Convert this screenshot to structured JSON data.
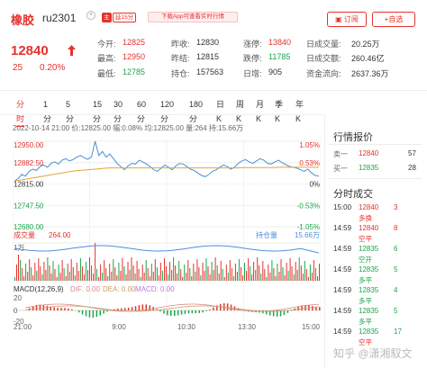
{
  "header": {
    "name": "橡胶",
    "code": "ru2301",
    "tag_main": "主",
    "tag_delay": "延15分",
    "app_banner": "下载App可查看实时行情",
    "order_button": "订阅",
    "fav_button": "+自选"
  },
  "quote": {
    "price": "12840",
    "change": "25",
    "change_pct": "0.20%",
    "fields": [
      {
        "label": "今开:",
        "value": "12825",
        "color": "#e5322d"
      },
      {
        "label": "昨收:",
        "value": "12830",
        "color": "#333333"
      },
      {
        "label": "涨停:",
        "value": "13840",
        "color": "#e5322d"
      },
      {
        "label": "日成交量:",
        "value": "20.25万",
        "color": "#333333"
      },
      {
        "label": "最高:",
        "value": "12950",
        "color": "#e5322d"
      },
      {
        "label": "昨结:",
        "value": "12815",
        "color": "#333333"
      },
      {
        "label": "跌停:",
        "value": "11785",
        "color": "#1aa64a"
      },
      {
        "label": "日成交额:",
        "value": "260.46亿",
        "color": "#333333"
      },
      {
        "label": "最低:",
        "value": "12785",
        "color": "#1aa64a"
      },
      {
        "label": "持仓:",
        "value": "157563",
        "color": "#333333"
      },
      {
        "label": "日增:",
        "value": "905",
        "color": "#333333"
      },
      {
        "label": "资金流向:",
        "value": "2637.36万",
        "color": "#333333"
      }
    ]
  },
  "tabs": [
    "分时",
    "1分",
    "5分",
    "15分",
    "30分",
    "60分",
    "120分",
    "180分",
    "日K",
    "周K",
    "月K",
    "季K",
    "年K"
  ],
  "infobar": "2022-10-14 21:00 价:12825.00 幅:0.08% 均:12825.00 量:264 持:15.66万",
  "chart_data": {
    "type": "line",
    "price_axis_left": [
      "12950.00",
      "12882.50",
      "12815.00",
      "12747.50",
      "12680.00"
    ],
    "price_axis_right": [
      "1.05%",
      "0.53%",
      "0%",
      "-0.53%",
      "-1.05%"
    ],
    "ylim": [
      12680,
      12950
    ],
    "volume_label": "成交量",
    "volume_value": "264.00",
    "open_interest_label": "持仓量",
    "open_interest_value": "15.66万",
    "volume_axis_top": "1万",
    "macd_label": "MACD(12,26,9)",
    "dif_label": "DIF: 0.00",
    "dea_label": "DEA: 0.00",
    "macd_value_label": "MACD: 0.00",
    "macd_axis": [
      "20",
      "0",
      "-20"
    ],
    "time_labels": [
      "21:00",
      "9:00",
      "10:30",
      "13:30",
      "15:00"
    ],
    "price": [
      12825,
      12832,
      12845,
      12840,
      12855,
      12862,
      12858,
      12870,
      12875,
      12868,
      12880,
      12885,
      12878,
      12890,
      12895,
      12888,
      12892,
      12900,
      12905,
      12898,
      12893,
      12900,
      12950,
      12905,
      12918,
      12900,
      12910,
      12895,
      12880,
      12870,
      12860,
      12872,
      12880,
      12878,
      12890,
      12885,
      12878,
      12870,
      12860,
      12855,
      12865,
      12875,
      12868,
      12860,
      12872,
      12880,
      12878,
      12870,
      12862,
      12858,
      12850,
      12842,
      12838,
      12845,
      12855,
      12860,
      12868,
      12875,
      12870,
      12862,
      12868,
      12880,
      12888,
      12892,
      12885,
      12880,
      12888,
      12895,
      12890,
      12880,
      12878,
      12885,
      12890,
      12882,
      12876,
      12870,
      12868,
      12865,
      12860,
      12855,
      12862,
      12850,
      12842,
      12840
    ],
    "avg": [
      12825,
      12826,
      12828,
      12830,
      12832,
      12834,
      12836,
      12838,
      12840,
      12842,
      12844,
      12846,
      12848,
      12850,
      12852,
      12854,
      12856,
      12857,
      12858,
      12859,
      12860,
      12861,
      12862,
      12863,
      12864,
      12865,
      12866,
      12866,
      12866,
      12866,
      12866,
      12866,
      12866,
      12866,
      12866,
      12866,
      12866,
      12866,
      12866,
      12866,
      12866,
      12866,
      12866,
      12866,
      12866,
      12866,
      12866,
      12866,
      12866,
      12866,
      12866,
      12866,
      12866,
      12866,
      12866,
      12866,
      12866,
      12866,
      12866,
      12866,
      12866,
      12866,
      12867,
      12867,
      12867,
      12867,
      12867,
      12867,
      12867,
      12867,
      12867,
      12867,
      12868,
      12868,
      12868,
      12868,
      12868,
      12868,
      12868,
      12868,
      12868,
      12868,
      12868,
      12868
    ]
  },
  "sidebar": {
    "quote_title": "行情报价",
    "sell_label": "卖一",
    "sell_price": "12840",
    "sell_qty": "57",
    "buy_label": "买一",
    "buy_price": "12835",
    "buy_qty": "28",
    "ticks_title": "分时成交",
    "ticks": [
      {
        "time": "15:00",
        "price": "12840",
        "qty": "3",
        "type": "多换",
        "pcolor": "#e5322d",
        "tcolor": "#e5322d"
      },
      {
        "time": "14:59",
        "price": "12840",
        "qty": "8",
        "type": "空平",
        "pcolor": "#e5322d",
        "tcolor": "#e5322d"
      },
      {
        "time": "14:59",
        "price": "12835",
        "qty": "6",
        "type": "空开",
        "pcolor": "#1aa64a",
        "tcolor": "#1aa64a"
      },
      {
        "time": "14:59",
        "price": "12835",
        "qty": "5",
        "type": "多平",
        "pcolor": "#1aa64a",
        "tcolor": "#1aa64a"
      },
      {
        "time": "14:59",
        "price": "12835",
        "qty": "4",
        "type": "多平",
        "pcolor": "#1aa64a",
        "tcolor": "#1aa64a"
      },
      {
        "time": "14:59",
        "price": "12835",
        "qty": "5",
        "type": "多平",
        "pcolor": "#1aa64a",
        "tcolor": "#1aa64a"
      },
      {
        "time": "14:59",
        "price": "12835",
        "qty": "17",
        "type": "空平",
        "pcolor": "#1aa64a",
        "tcolor": "#e5322d"
      }
    ]
  },
  "watermark": "知乎 @潇湘馭文"
}
